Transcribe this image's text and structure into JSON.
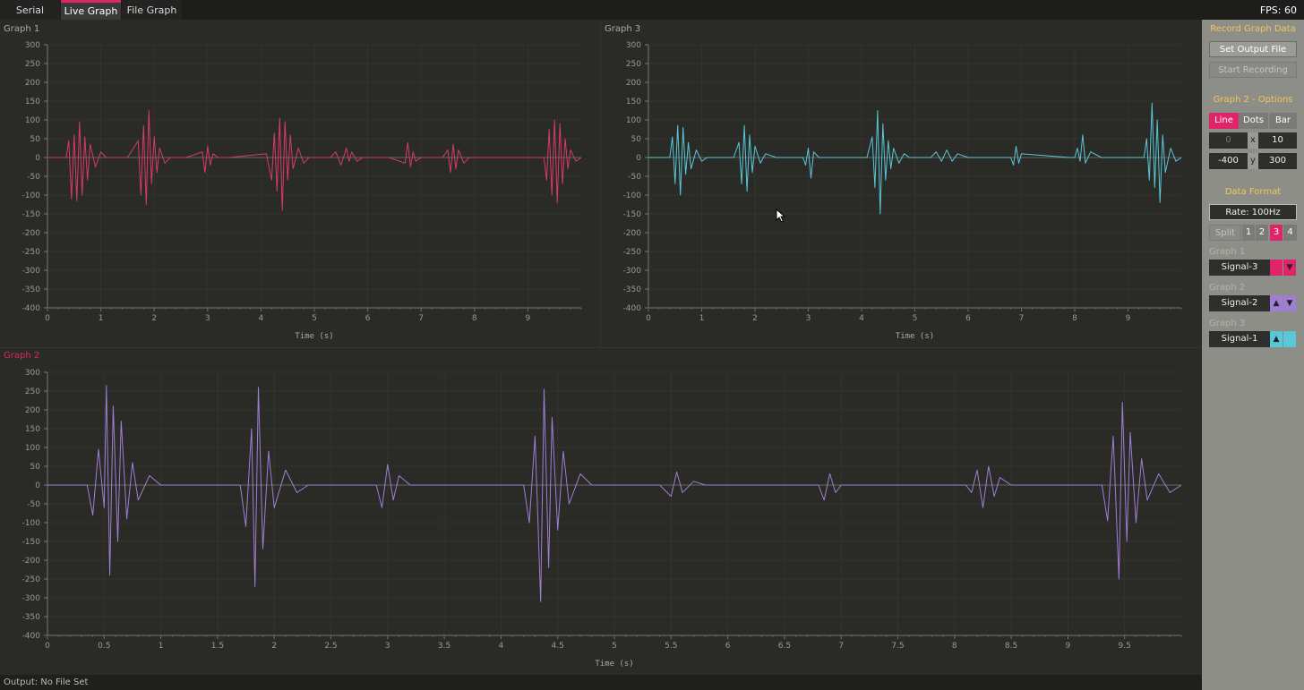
{
  "tabs": [
    {
      "label": "Serial",
      "active": false
    },
    {
      "label": "Live Graph",
      "active": true
    },
    {
      "label": "File Graph",
      "active": false
    }
  ],
  "fps": "FPS: 60",
  "status": {
    "output": "Output: No File Set"
  },
  "colors": {
    "accent": "#e0246a",
    "graph1": "#d93a6a",
    "graph2": "#a07ed6",
    "graph3": "#58c8d8",
    "heading": "#f2c65a"
  },
  "sidebar": {
    "record_heading": "Record Graph Data",
    "set_output_label": "Set Output File",
    "start_recording_label": "Start Recording",
    "options_heading": "Graph 2 - Options",
    "modes": [
      "Line",
      "Dots",
      "Bar"
    ],
    "active_mode": "Line",
    "x_min": "0",
    "x_label": "x",
    "x_max": "10",
    "y_min": "-400",
    "y_label": "y",
    "y_max": "300",
    "data_format_heading": "Data Format",
    "rate_label": "Rate: 100Hz",
    "split_label": "Split",
    "split_options": [
      "1",
      "2",
      "3",
      "4"
    ],
    "split_active": "3",
    "graph_assign": [
      {
        "label": "Graph 1",
        "signal": "Signal-3",
        "color_icon": "square-icon",
        "arrow_icon": "down-arrow-icon"
      },
      {
        "label": "Graph 2",
        "signal": "Signal-2",
        "color_icon": "up-arrow-icon",
        "arrow_icon": "down-arrow-icon"
      },
      {
        "label": "Graph 3",
        "signal": "Signal-1",
        "color_icon": "up-arrow-icon",
        "arrow_icon": "square-icon"
      }
    ]
  },
  "chart_data": [
    {
      "type": "line",
      "title": "Graph 1",
      "xlabel": "Time (s)",
      "xlim": [
        0,
        10
      ],
      "ylim": [
        -400,
        300
      ],
      "xticks": [
        "0",
        "1",
        "2",
        "3",
        "4",
        "5",
        "6",
        "7",
        "8",
        "9"
      ],
      "yticks": [
        300,
        250,
        200,
        150,
        100,
        50,
        0,
        -50,
        -100,
        -150,
        -200,
        -250,
        -300,
        -350,
        -400
      ],
      "grid": true,
      "series": [
        {
          "color": "#d93a6a",
          "x": [
            0,
            0.35,
            0.4,
            0.45,
            0.5,
            0.55,
            0.6,
            0.65,
            0.7,
            0.75,
            0.8,
            0.9,
            1.0,
            1.1,
            1.5,
            1.7,
            1.75,
            1.8,
            1.85,
            1.9,
            1.95,
            2.0,
            2.05,
            2.1,
            2.2,
            2.3,
            2.6,
            2.9,
            2.95,
            3.0,
            3.05,
            3.1,
            3.2,
            3.4,
            4.1,
            4.2,
            4.25,
            4.3,
            4.35,
            4.4,
            4.45,
            4.5,
            4.55,
            4.6,
            4.7,
            4.8,
            4.9,
            5.3,
            5.4,
            5.5,
            5.6,
            5.65,
            5.7,
            5.8,
            5.9,
            6.4,
            6.7,
            6.75,
            6.8,
            6.85,
            6.9,
            7.0,
            7.4,
            7.5,
            7.55,
            7.6,
            7.65,
            7.7,
            7.8,
            7.9,
            9.3,
            9.35,
            9.4,
            9.45,
            9.5,
            9.55,
            9.6,
            9.65,
            9.7,
            9.75,
            9.8,
            9.9,
            10.0
          ],
          "y": [
            0,
            0,
            45,
            -110,
            60,
            -115,
            95,
            -100,
            55,
            -60,
            35,
            -25,
            15,
            0,
            0,
            45,
            -100,
            85,
            -125,
            125,
            -70,
            55,
            -40,
            25,
            -15,
            0,
            0,
            15,
            -40,
            30,
            -20,
            10,
            0,
            0,
            10,
            -60,
            65,
            -90,
            105,
            -140,
            95,
            -60,
            60,
            -30,
            25,
            -15,
            0,
            0,
            15,
            -20,
            25,
            -10,
            15,
            -10,
            0,
            0,
            -15,
            40,
            -25,
            15,
            -10,
            0,
            0,
            20,
            -40,
            35,
            -30,
            20,
            -15,
            0,
            0,
            -60,
            75,
            -100,
            100,
            -120,
            90,
            -70,
            50,
            -30,
            20,
            -10,
            0
          ]
        }
      ]
    },
    {
      "type": "line",
      "title": "Graph 3",
      "xlabel": "Time (s)",
      "xlim": [
        0,
        10
      ],
      "ylim": [
        -400,
        300
      ],
      "xticks": [
        "0",
        "1",
        "2",
        "3",
        "4",
        "5",
        "6",
        "7",
        "8",
        "9"
      ],
      "yticks": [
        300,
        250,
        200,
        150,
        100,
        50,
        0,
        -50,
        -100,
        -150,
        -200,
        -250,
        -300,
        -350,
        -400
      ],
      "grid": true,
      "series": [
        {
          "color": "#58c8d8",
          "x": [
            0,
            0.4,
            0.45,
            0.5,
            0.55,
            0.6,
            0.65,
            0.7,
            0.75,
            0.8,
            0.9,
            1.0,
            1.1,
            1.6,
            1.7,
            1.75,
            1.8,
            1.85,
            1.9,
            1.95,
            2.0,
            2.1,
            2.2,
            2.4,
            2.9,
            2.95,
            3.0,
            3.05,
            3.1,
            3.2,
            4.1,
            4.2,
            4.25,
            4.3,
            4.35,
            4.4,
            4.45,
            4.5,
            4.55,
            4.6,
            4.7,
            4.8,
            4.9,
            5.3,
            5.4,
            5.5,
            5.6,
            5.7,
            5.8,
            6.0,
            6.8,
            6.85,
            6.9,
            6.95,
            7.0,
            7.9,
            8.0,
            8.05,
            8.1,
            8.15,
            8.2,
            8.3,
            8.5,
            9.3,
            9.35,
            9.4,
            9.45,
            9.5,
            9.55,
            9.6,
            9.65,
            9.7,
            9.8,
            9.9,
            10.0
          ],
          "y": [
            0,
            0,
            55,
            -70,
            85,
            -100,
            80,
            -45,
            40,
            -30,
            20,
            -10,
            0,
            0,
            40,
            -70,
            85,
            -90,
            60,
            -40,
            30,
            -15,
            10,
            0,
            0,
            -20,
            25,
            -55,
            15,
            0,
            0,
            55,
            -80,
            125,
            -150,
            90,
            -60,
            45,
            -30,
            25,
            -15,
            10,
            0,
            0,
            15,
            -10,
            20,
            -10,
            10,
            0,
            0,
            -20,
            30,
            -15,
            10,
            0,
            0,
            25,
            -10,
            60,
            -15,
            15,
            0,
            0,
            50,
            -60,
            145,
            -80,
            100,
            -120,
            60,
            -40,
            25,
            -10,
            0
          ]
        }
      ]
    },
    {
      "type": "line",
      "title": "Graph 2",
      "xlabel": "Time (s)",
      "xlim": [
        0,
        10
      ],
      "ylim": [
        -400,
        300
      ],
      "xticks": [
        "0",
        "0.5",
        "1",
        "1.5",
        "2",
        "2.5",
        "3",
        "3.5",
        "4",
        "4.5",
        "5",
        "5.5",
        "6",
        "6.5",
        "7",
        "7.5",
        "8",
        "8.5",
        "9",
        "9.5"
      ],
      "yticks": [
        300,
        250,
        200,
        150,
        100,
        50,
        0,
        -50,
        -100,
        -150,
        -200,
        -250,
        -300,
        -350,
        -400
      ],
      "grid": true,
      "series": [
        {
          "color": "#a07ed6",
          "x": [
            0,
            0.35,
            0.4,
            0.45,
            0.5,
            0.52,
            0.55,
            0.58,
            0.62,
            0.65,
            0.7,
            0.75,
            0.8,
            0.9,
            1.0,
            1.7,
            1.75,
            1.8,
            1.83,
            1.86,
            1.9,
            1.95,
            2.0,
            2.1,
            2.2,
            2.3,
            2.9,
            2.95,
            3.0,
            3.05,
            3.1,
            3.2,
            4.2,
            4.25,
            4.3,
            4.35,
            4.38,
            4.42,
            4.45,
            4.5,
            4.55,
            4.6,
            4.7,
            4.8,
            5.4,
            5.5,
            5.55,
            5.6,
            5.7,
            5.8,
            6.8,
            6.85,
            6.9,
            6.95,
            7.0,
            8.1,
            8.15,
            8.2,
            8.25,
            8.3,
            8.35,
            8.4,
            8.5,
            9.3,
            9.35,
            9.4,
            9.45,
            9.48,
            9.52,
            9.55,
            9.6,
            9.65,
            9.7,
            9.8,
            9.9,
            10.0
          ],
          "y": [
            0,
            0,
            -80,
            95,
            -60,
            265,
            -240,
            210,
            -150,
            170,
            -90,
            60,
            -40,
            25,
            0,
            0,
            -110,
            150,
            -270,
            260,
            -170,
            90,
            -60,
            40,
            -20,
            0,
            0,
            -60,
            55,
            -40,
            25,
            0,
            0,
            -100,
            130,
            -310,
            255,
            -220,
            180,
            -120,
            90,
            -50,
            30,
            0,
            0,
            -30,
            35,
            -20,
            10,
            0,
            0,
            -40,
            30,
            -20,
            0,
            0,
            -20,
            40,
            -60,
            50,
            -30,
            20,
            0,
            0,
            -95,
            130,
            -250,
            220,
            -150,
            140,
            -100,
            70,
            -40,
            30,
            -20,
            0
          ]
        }
      ]
    }
  ]
}
